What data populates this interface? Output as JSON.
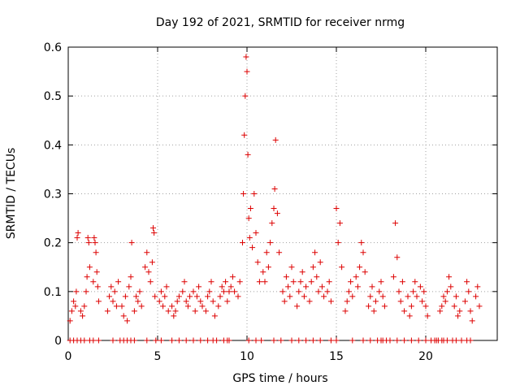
{
  "chart_data": {
    "type": "scatter",
    "title": "Day 192 of 2021, SRMTID for receiver nrmg",
    "xlabel": "GPS time / hours",
    "ylabel": "SRMTID / TECUs",
    "xlim": [
      0,
      24
    ],
    "ylim": [
      0,
      0.6
    ],
    "x_ticks": [
      0,
      5,
      10,
      15,
      20
    ],
    "y_ticks": [
      0,
      0.1,
      0.2,
      0.3,
      0.4,
      0.5,
      0.6
    ],
    "x_tick_labels": [
      "0",
      "5",
      "10",
      "15",
      "20"
    ],
    "y_tick_labels": [
      "0",
      "0.1",
      "0.2",
      "0.3",
      "0.4",
      "0.5",
      "0.6"
    ],
    "grid": true,
    "marker": "+",
    "colors": {
      "series": "#dd0000",
      "axis": "#000000",
      "grid": "#a0a0a0"
    },
    "series": [
      {
        "name": "SRMTID",
        "points": [
          [
            0.1,
            0.04
          ],
          [
            0.2,
            0.06
          ],
          [
            0.3,
            0.08
          ],
          [
            0.4,
            0.07
          ],
          [
            0.45,
            0.1
          ],
          [
            0.5,
            0.21
          ],
          [
            0.55,
            0.22
          ],
          [
            0.7,
            0.06
          ],
          [
            0.8,
            0.05
          ],
          [
            0.9,
            0.07
          ],
          [
            1.0,
            0.1
          ],
          [
            1.05,
            0.13
          ],
          [
            1.1,
            0.21
          ],
          [
            1.15,
            0.2
          ],
          [
            1.2,
            0.15
          ],
          [
            1.4,
            0.12
          ],
          [
            1.45,
            0.21
          ],
          [
            1.5,
            0.2
          ],
          [
            1.55,
            0.18
          ],
          [
            1.6,
            0.14
          ],
          [
            1.65,
            0.11
          ],
          [
            1.7,
            0.08
          ],
          [
            2.2,
            0.06
          ],
          [
            2.3,
            0.09
          ],
          [
            2.4,
            0.11
          ],
          [
            2.5,
            0.08
          ],
          [
            2.6,
            0.1
          ],
          [
            2.7,
            0.07
          ],
          [
            2.8,
            0.12
          ],
          [
            3.0,
            0.07
          ],
          [
            3.1,
            0.05
          ],
          [
            3.2,
            0.09
          ],
          [
            3.3,
            0.04
          ],
          [
            3.4,
            0.11
          ],
          [
            3.5,
            0.13
          ],
          [
            3.55,
            0.2
          ],
          [
            3.7,
            0.06
          ],
          [
            3.8,
            0.09
          ],
          [
            3.9,
            0.08
          ],
          [
            4.0,
            0.1
          ],
          [
            4.1,
            0.07
          ],
          [
            4.3,
            0.15
          ],
          [
            4.4,
            0.18
          ],
          [
            4.5,
            0.14
          ],
          [
            4.6,
            0.12
          ],
          [
            4.7,
            0.16
          ],
          [
            4.75,
            0.23
          ],
          [
            4.8,
            0.22
          ],
          [
            4.85,
            0.09
          ],
          [
            5.1,
            0.08
          ],
          [
            5.2,
            0.1
          ],
          [
            5.3,
            0.07
          ],
          [
            5.4,
            0.09
          ],
          [
            5.5,
            0.11
          ],
          [
            5.6,
            0.06
          ],
          [
            5.8,
            0.07
          ],
          [
            5.9,
            0.05
          ],
          [
            6.0,
            0.06
          ],
          [
            6.1,
            0.08
          ],
          [
            6.2,
            0.09
          ],
          [
            6.4,
            0.1
          ],
          [
            6.5,
            0.12
          ],
          [
            6.6,
            0.08
          ],
          [
            6.7,
            0.07
          ],
          [
            6.8,
            0.09
          ],
          [
            7.0,
            0.1
          ],
          [
            7.1,
            0.06
          ],
          [
            7.2,
            0.09
          ],
          [
            7.3,
            0.11
          ],
          [
            7.4,
            0.08
          ],
          [
            7.5,
            0.07
          ],
          [
            7.7,
            0.06
          ],
          [
            7.8,
            0.09
          ],
          [
            7.9,
            0.1
          ],
          [
            8.0,
            0.12
          ],
          [
            8.1,
            0.08
          ],
          [
            8.2,
            0.05
          ],
          [
            8.4,
            0.07
          ],
          [
            8.5,
            0.09
          ],
          [
            8.6,
            0.11
          ],
          [
            8.7,
            0.1
          ],
          [
            8.8,
            0.12
          ],
          [
            8.9,
            0.08
          ],
          [
            9.0,
            0.1
          ],
          [
            9.1,
            0.11
          ],
          [
            9.2,
            0.13
          ],
          [
            9.3,
            0.1
          ],
          [
            9.5,
            0.09
          ],
          [
            9.6,
            0.12
          ],
          [
            9.75,
            0.2
          ],
          [
            9.8,
            0.3
          ],
          [
            9.85,
            0.42
          ],
          [
            9.9,
            0.5
          ],
          [
            9.95,
            0.58
          ],
          [
            10.0,
            0.55
          ],
          [
            10.05,
            0.38
          ],
          [
            10.1,
            0.25
          ],
          [
            10.15,
            0.21
          ],
          [
            10.2,
            0.27
          ],
          [
            10.3,
            0.19
          ],
          [
            10.4,
            0.3
          ],
          [
            10.5,
            0.22
          ],
          [
            10.6,
            0.16
          ],
          [
            10.7,
            0.12
          ],
          [
            10.9,
            0.14
          ],
          [
            11.0,
            0.12
          ],
          [
            11.1,
            0.18
          ],
          [
            11.2,
            0.15
          ],
          [
            11.3,
            0.2
          ],
          [
            11.4,
            0.24
          ],
          [
            11.5,
            0.27
          ],
          [
            11.55,
            0.31
          ],
          [
            11.6,
            0.41
          ],
          [
            11.7,
            0.26
          ],
          [
            11.8,
            0.18
          ],
          [
            12.0,
            0.1
          ],
          [
            12.1,
            0.08
          ],
          [
            12.2,
            0.13
          ],
          [
            12.3,
            0.11
          ],
          [
            12.4,
            0.09
          ],
          [
            12.5,
            0.15
          ],
          [
            12.6,
            0.12
          ],
          [
            12.8,
            0.07
          ],
          [
            12.9,
            0.1
          ],
          [
            13.0,
            0.12
          ],
          [
            13.1,
            0.14
          ],
          [
            13.2,
            0.09
          ],
          [
            13.3,
            0.11
          ],
          [
            13.5,
            0.08
          ],
          [
            13.6,
            0.12
          ],
          [
            13.7,
            0.15
          ],
          [
            13.8,
            0.18
          ],
          [
            13.9,
            0.13
          ],
          [
            14.0,
            0.1
          ],
          [
            14.1,
            0.16
          ],
          [
            14.2,
            0.11
          ],
          [
            14.3,
            0.09
          ],
          [
            14.5,
            0.1
          ],
          [
            14.6,
            0.12
          ],
          [
            14.7,
            0.08
          ],
          [
            15.0,
            0.27
          ],
          [
            15.1,
            0.2
          ],
          [
            15.2,
            0.24
          ],
          [
            15.3,
            0.15
          ],
          [
            15.5,
            0.06
          ],
          [
            15.6,
            0.08
          ],
          [
            15.7,
            0.1
          ],
          [
            15.8,
            0.12
          ],
          [
            15.9,
            0.09
          ],
          [
            16.1,
            0.13
          ],
          [
            16.2,
            0.11
          ],
          [
            16.3,
            0.15
          ],
          [
            16.4,
            0.2
          ],
          [
            16.5,
            0.18
          ],
          [
            16.6,
            0.14
          ],
          [
            16.8,
            0.07
          ],
          [
            16.9,
            0.09
          ],
          [
            17.0,
            0.11
          ],
          [
            17.1,
            0.06
          ],
          [
            17.2,
            0.08
          ],
          [
            17.4,
            0.1
          ],
          [
            17.5,
            0.12
          ],
          [
            17.6,
            0.09
          ],
          [
            17.7,
            0.07
          ],
          [
            18.2,
            0.13
          ],
          [
            18.3,
            0.24
          ],
          [
            18.4,
            0.17
          ],
          [
            18.5,
            0.1
          ],
          [
            18.6,
            0.08
          ],
          [
            18.7,
            0.12
          ],
          [
            18.8,
            0.06
          ],
          [
            19.0,
            0.09
          ],
          [
            19.1,
            0.05
          ],
          [
            19.2,
            0.07
          ],
          [
            19.3,
            0.1
          ],
          [
            19.4,
            0.12
          ],
          [
            19.5,
            0.09
          ],
          [
            19.7,
            0.11
          ],
          [
            19.8,
            0.08
          ],
          [
            19.9,
            0.1
          ],
          [
            20.0,
            0.07
          ],
          [
            20.1,
            0.05
          ],
          [
            20.8,
            0.06
          ],
          [
            20.9,
            0.07
          ],
          [
            21.0,
            0.09
          ],
          [
            21.1,
            0.08
          ],
          [
            21.2,
            0.1
          ],
          [
            21.3,
            0.13
          ],
          [
            21.4,
            0.11
          ],
          [
            21.6,
            0.07
          ],
          [
            21.7,
            0.09
          ],
          [
            21.8,
            0.05
          ],
          [
            21.9,
            0.06
          ],
          [
            22.2,
            0.08
          ],
          [
            22.3,
            0.12
          ],
          [
            22.4,
            0.1
          ],
          [
            22.5,
            0.06
          ],
          [
            22.6,
            0.04
          ],
          [
            22.8,
            0.09
          ],
          [
            22.9,
            0.11
          ],
          [
            23.0,
            0.07
          ]
        ],
        "zero_points": [
          0.1,
          0.3,
          0.5,
          0.7,
          0.9,
          1.2,
          1.4,
          1.7,
          2.5,
          2.9,
          3.1,
          3.3,
          3.5,
          3.7,
          4.4,
          4.9,
          5.2,
          5.8,
          6.2,
          6.6,
          7.0,
          7.4,
          7.8,
          8.1,
          8.3,
          8.7,
          8.9,
          9.0,
          10.1,
          10.5,
          10.8,
          11.5,
          11.9,
          12.5,
          12.9,
          13.3,
          13.7,
          14.1,
          14.7,
          15.0,
          15.9,
          16.5,
          16.9,
          17.3,
          17.5,
          17.6,
          17.8,
          18.0,
          18.4,
          18.8,
          19.2,
          19.6,
          20.0,
          20.3,
          20.5,
          20.6,
          20.7,
          20.9,
          21.0,
          21.2,
          21.5,
          21.7,
          22.0,
          22.3,
          22.5
        ]
      }
    ]
  }
}
